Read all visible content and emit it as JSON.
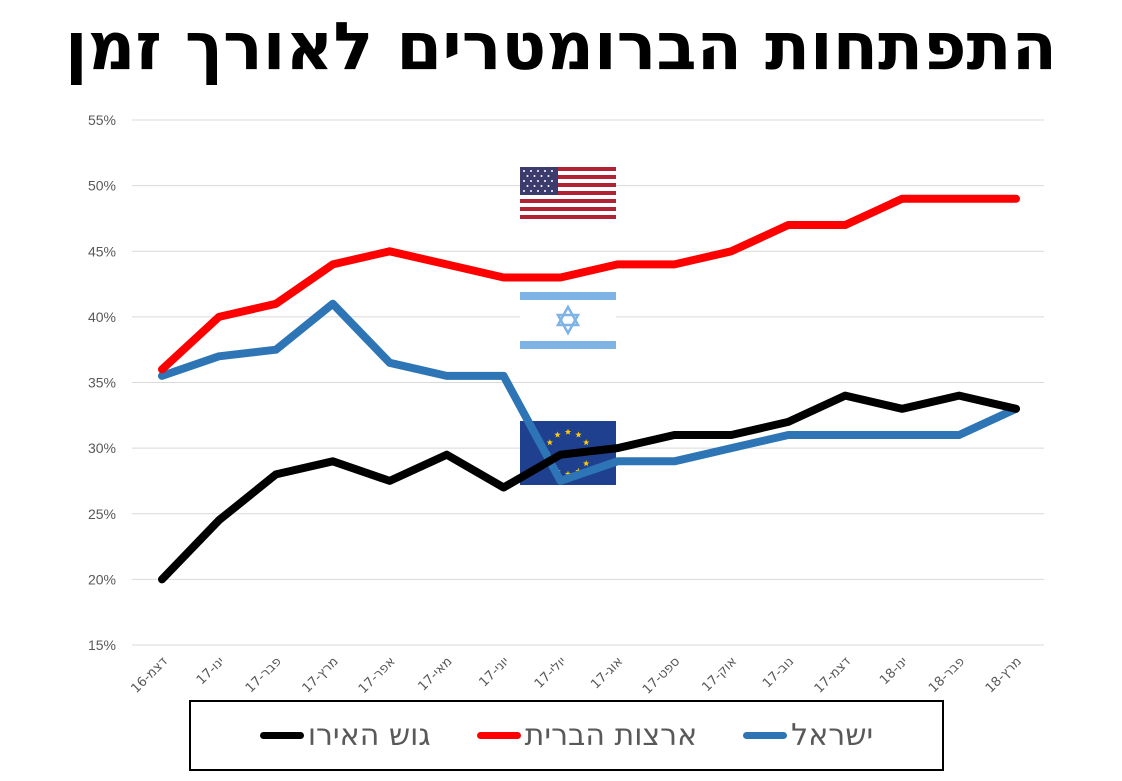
{
  "chart_data": {
    "type": "line",
    "title": "התפתחות הברומטרים לאורך זמן",
    "categories": [
      "דצמ-16",
      "ינו-17",
      "פבר-17",
      "מרץ-17",
      "אפר-17",
      "מאי-17",
      "יוני-17",
      "יולי-17",
      "אוג-17",
      "ספט-17",
      "אוק-17",
      "נוב-17",
      "דצמ-17",
      "ינו-18",
      "פבר-18",
      "מרץ-18"
    ],
    "yticks": [
      "15%",
      "20%",
      "25%",
      "30%",
      "35%",
      "40%",
      "45%",
      "50%",
      "55%"
    ],
    "ylim": [
      15,
      55
    ],
    "grid": true,
    "legend_position": "bottom",
    "series": [
      {
        "name": "ישראל",
        "color": "#2E75B6",
        "flag": "israel-flag",
        "values": [
          35.5,
          37,
          37.5,
          41,
          36.5,
          35.5,
          35.5,
          27.5,
          29,
          29,
          30,
          31,
          31,
          31,
          31,
          33
        ]
      },
      {
        "name": "ארצות הברית",
        "color": "#FF0000",
        "flag": "usa-flag",
        "values": [
          36,
          40,
          41,
          44,
          45,
          44,
          43,
          43,
          44,
          44,
          45,
          47,
          47,
          49,
          49,
          49
        ]
      },
      {
        "name": "גוש האירו",
        "color": "#000000",
        "flag": "eu-flag",
        "values": [
          20,
          24.5,
          28,
          29,
          27.5,
          29.5,
          27,
          29.5,
          30,
          31,
          31,
          32,
          34,
          33,
          34,
          33
        ]
      }
    ]
  }
}
